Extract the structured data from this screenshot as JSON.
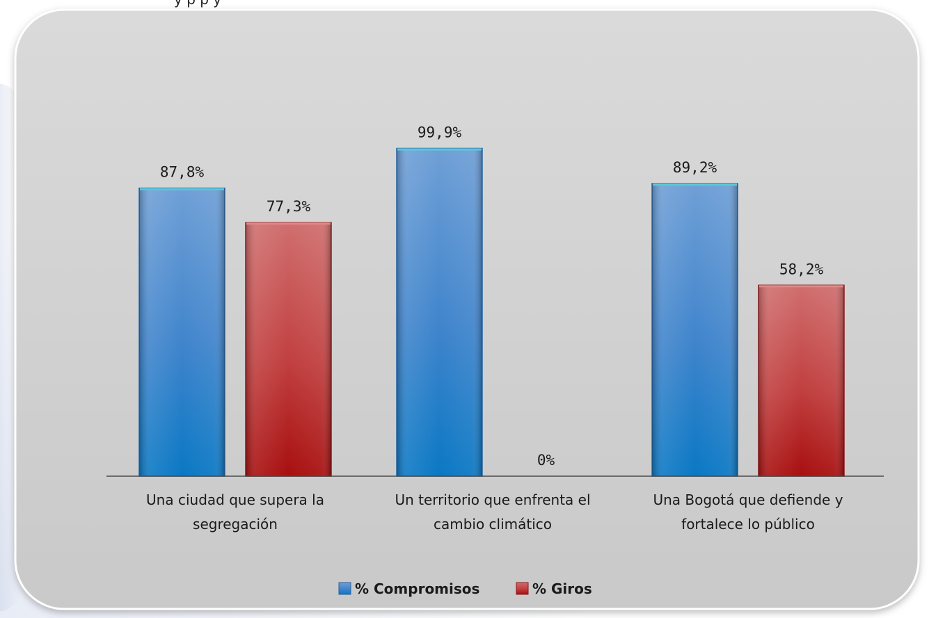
{
  "header_text": "y    p                       p     y",
  "colors": {
    "panel": "#cfcfcf",
    "compromisos": "#3a7fc8",
    "giros": "#c02a2a",
    "axis": "#444444"
  },
  "chart_data": {
    "type": "bar",
    "categories": [
      [
        "Una ciudad que supera la",
        "segregación"
      ],
      [
        "Un territorio que enfrenta el",
        "cambio climático"
      ],
      [
        "Una Bogotá que defiende y",
        "fortalece lo público"
      ]
    ],
    "series": [
      {
        "name": "% Compromisos",
        "values": [
          87.8,
          99.9,
          89.2
        ],
        "labels": [
          "87,8%",
          "99,9%",
          "89,2%"
        ],
        "color": "#3a7fc8"
      },
      {
        "name": "% Giros",
        "values": [
          77.3,
          0,
          58.2
        ],
        "labels": [
          "77,3%",
          "0%",
          "58,2%"
        ],
        "color": "#c02a2a"
      }
    ],
    "ylim": [
      0,
      100
    ],
    "grid": false,
    "legend_position": "bottom"
  }
}
